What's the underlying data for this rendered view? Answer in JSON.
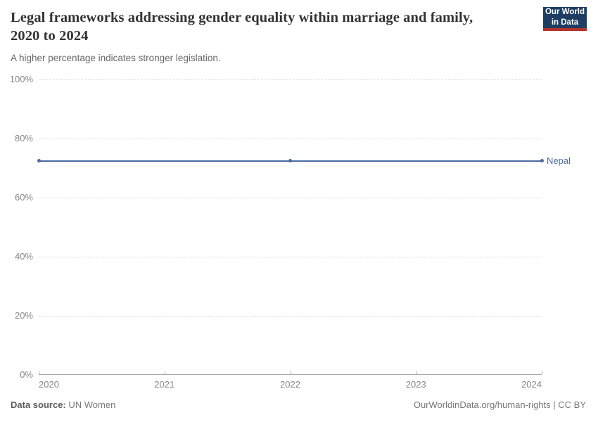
{
  "logo": {
    "line1": "Our World",
    "line2": "in Data",
    "bg_color": "#1d3d63",
    "accent_color": "#b5322b"
  },
  "footer": {
    "data_source_label": "Data source:",
    "data_source_value": " UN Women",
    "credit": "OurWorldinData.org/human-rights | CC BY"
  },
  "chart_data": {
    "type": "line",
    "title": "Legal frameworks addressing gender equality within marriage and family, 2020 to 2024",
    "subtitle": "A higher percentage indicates stronger legislation.",
    "xlabel": "",
    "ylabel": "",
    "xlim": [
      2020,
      2024
    ],
    "ylim": [
      0,
      100
    ],
    "xticks": [
      2020,
      2021,
      2022,
      2023,
      2024
    ],
    "yticks": [
      0,
      20,
      40,
      60,
      80,
      100
    ],
    "ytick_suffix": "%",
    "grid": "horizontal-dashed",
    "legend_position": "end-of-line-label",
    "series": [
      {
        "name": "Nepal",
        "x": [
          2020,
          2022,
          2024
        ],
        "values": [
          72.5,
          72.5,
          72.5
        ],
        "color": "#4c6ba3"
      }
    ]
  }
}
